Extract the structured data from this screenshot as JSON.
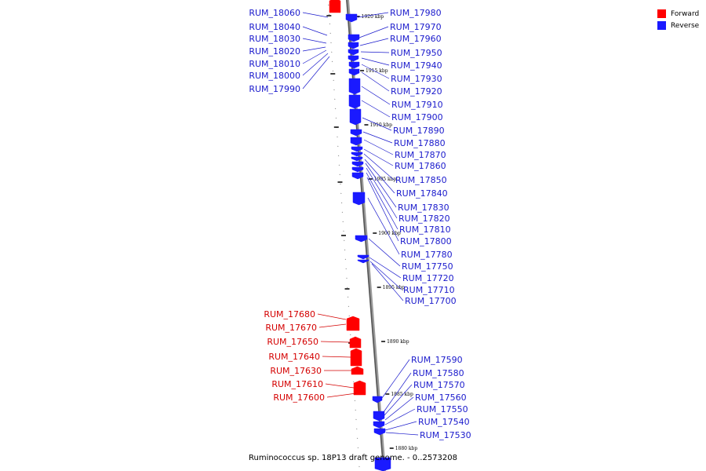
{
  "legend": {
    "forward_label": "Forward",
    "reverse_label": "Reverse",
    "forward_color": "#ff0000",
    "reverse_color": "#1a1aff"
  },
  "caption": "Ruminococcus sp. 18P13 draft genome. - 0..2573208",
  "scale_labels": [
    "1920 kbp",
    "1915 kbp",
    "1910 kbp",
    "1905 kbp",
    "1900 kbp",
    "1895 kbp",
    "1890 kbp",
    "1885 kbp",
    "1880 kbp"
  ],
  "left_labels": [
    {
      "text": "RUM_18060",
      "strand": "reverse"
    },
    {
      "text": "RUM_18040",
      "strand": "reverse"
    },
    {
      "text": "RUM_18030",
      "strand": "reverse"
    },
    {
      "text": "RUM_18020",
      "strand": "reverse"
    },
    {
      "text": "RUM_18010",
      "strand": "reverse"
    },
    {
      "text": "RUM_18000",
      "strand": "reverse"
    },
    {
      "text": "RUM_17990",
      "strand": "reverse"
    },
    {
      "text": "RUM_17680",
      "strand": "forward"
    },
    {
      "text": "RUM_17670",
      "strand": "forward"
    },
    {
      "text": "RUM_17650",
      "strand": "forward"
    },
    {
      "text": "RUM_17640",
      "strand": "forward"
    },
    {
      "text": "RUM_17630",
      "strand": "forward"
    },
    {
      "text": "RUM_17610",
      "strand": "forward"
    },
    {
      "text": "RUM_17600",
      "strand": "forward"
    }
  ],
  "right_labels": [
    {
      "text": "RUM_17980"
    },
    {
      "text": "RUM_17970"
    },
    {
      "text": "RUM_17960"
    },
    {
      "text": "RUM_17950"
    },
    {
      "text": "RUM_17940"
    },
    {
      "text": "RUM_17930"
    },
    {
      "text": "RUM_17920"
    },
    {
      "text": "RUM_17910"
    },
    {
      "text": "RUM_17900"
    },
    {
      "text": "RUM_17890"
    },
    {
      "text": "RUM_17880"
    },
    {
      "text": "RUM_17870"
    },
    {
      "text": "RUM_17860"
    },
    {
      "text": "RUM_17850"
    },
    {
      "text": "RUM_17840"
    },
    {
      "text": "RUM_17830"
    },
    {
      "text": "RUM_17820"
    },
    {
      "text": "RUM_17810"
    },
    {
      "text": "RUM_17800"
    },
    {
      "text": "RUM_17780"
    },
    {
      "text": "RUM_17750"
    },
    {
      "text": "RUM_17720"
    },
    {
      "text": "RUM_17710"
    },
    {
      "text": "RUM_17700"
    },
    {
      "text": "RUM_17590"
    },
    {
      "text": "RUM_17580"
    },
    {
      "text": "RUM_17570"
    },
    {
      "text": "RUM_17560"
    },
    {
      "text": "RUM_17550"
    },
    {
      "text": "RUM_17540"
    },
    {
      "text": "RUM_17530"
    }
  ]
}
